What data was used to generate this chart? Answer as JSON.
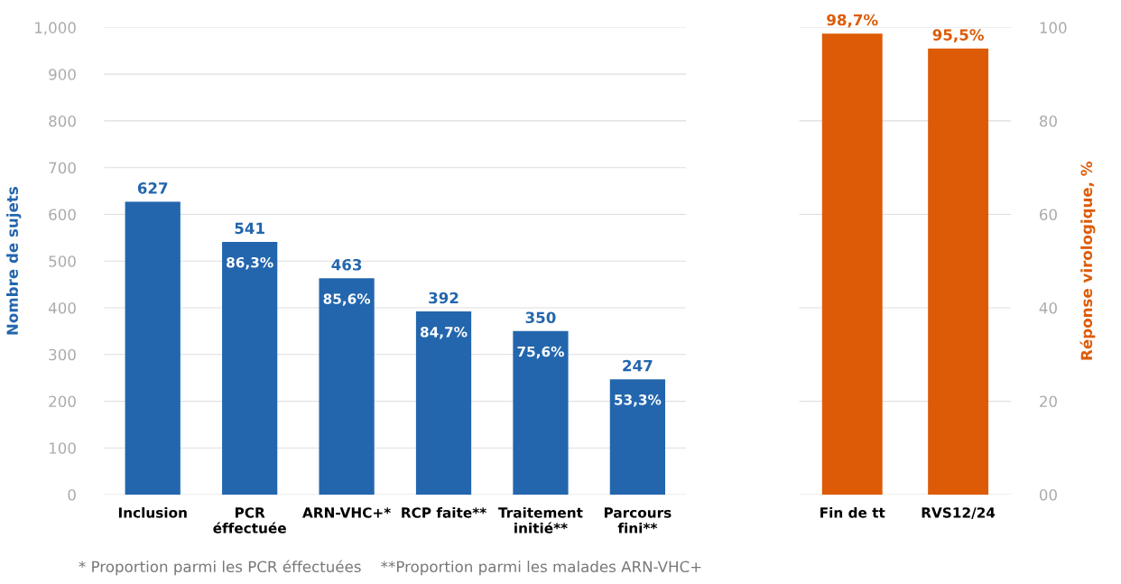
{
  "chart_data": [
    {
      "type": "bar",
      "categories": [
        "Inclusion",
        "PCR\néffectuée",
        "ARN-VHC+*",
        "RCP faite**",
        "Traitement\ninitié**",
        "Parcours\nfini**"
      ],
      "values": [
        627,
        541,
        463,
        392,
        350,
        247
      ],
      "color": "#2366ad",
      "data_labels": true,
      "ylabel": "Nombre de sujets",
      "ylim": [
        0,
        1000
      ],
      "yticks": [
        0,
        100,
        200,
        300,
        400,
        500,
        600,
        700,
        800,
        900,
        {
          "value": 1000,
          "label": "1,000"
        }
      ],
      "grid": "y",
      "annotations": [
        {
          "text": "86,3%",
          "x": "PCR\néffectuée",
          "y": 541
        },
        {
          "text": "85,6%",
          "x": "ARN-VHC+*",
          "y": 463
        },
        {
          "text": "84,7%",
          "x": "RCP faite**",
          "y": 392
        },
        {
          "text": "75,6%",
          "x": "Traitement\ninitié**",
          "y": 350
        },
        {
          "text": "53,3%",
          "x": "Parcours\nfini**",
          "y": 247
        },
        "* Proportion parmi les PCR éffectuées",
        "**Proportion parmi les malades ARN-VHC+"
      ]
    },
    {
      "type": "bar",
      "categories": [
        "Fin de tt",
        "RVS12/24"
      ],
      "series": [
        {
          "values": [
            98.7,
            95.5
          ],
          "color": "#dd5b07",
          "axis": "y2",
          "value_labels": [
            "98,7%",
            "95,5%"
          ]
        }
      ],
      "y2label": "Réponse virologique, %",
      "y2lim": [
        0,
        100
      ],
      "y2ticks": [
        {
          "value": 0,
          "label": "00"
        },
        20,
        40,
        60,
        80,
        100
      ],
      "grid": "y"
    }
  ]
}
